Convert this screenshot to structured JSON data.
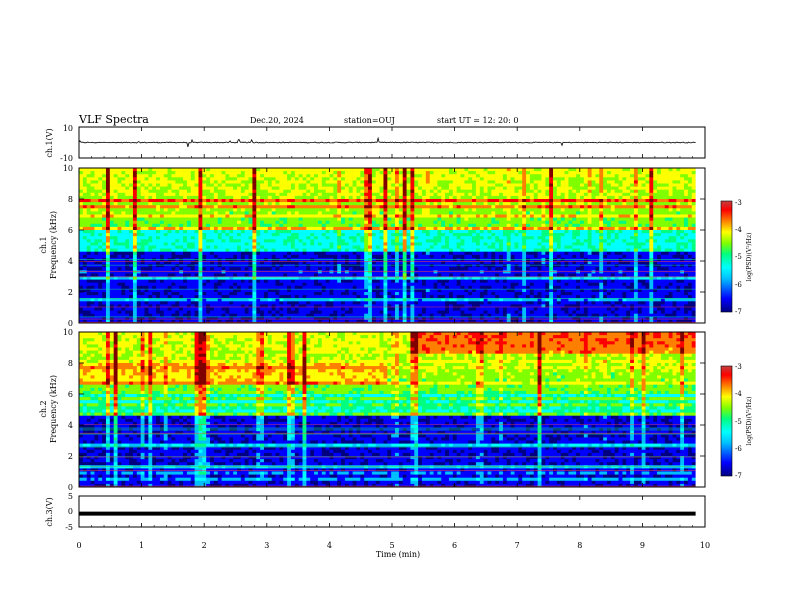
{
  "header": {
    "title": "VLF Spectra",
    "date": "Dec.20, 2024",
    "station": "station=OUJ",
    "start": "start UT =  12: 20: 0"
  },
  "chart_data": [
    {
      "type": "line",
      "panel": "ch1-waveform",
      "ylabel": "ch.1(V)",
      "ylim": [
        -10,
        10
      ],
      "yticks": [
        "10",
        "-10"
      ],
      "xlim": [
        0,
        10
      ],
      "baseline": 0,
      "color": "#000000"
    },
    {
      "type": "heatmap",
      "panel": "ch1-spectrogram",
      "ylabel": "ch.1\nFrequency (kHz)",
      "ylim": [
        0,
        10
      ],
      "yticks": [
        0,
        2,
        4,
        6,
        8,
        10
      ],
      "xlim": [
        0,
        10
      ],
      "colorbar": {
        "label": "log(PSD)(V²/Hz)",
        "range": [
          -7,
          -3
        ],
        "ticks": [
          "-3",
          "-4",
          "-5",
          "-6",
          "-7"
        ]
      }
    },
    {
      "type": "heatmap",
      "panel": "ch2-spectrogram",
      "ylabel": "ch.2\nFrequency (kHz)",
      "ylim": [
        0,
        10
      ],
      "yticks": [
        0,
        2,
        4,
        6,
        8,
        10
      ],
      "xlim": [
        0,
        10
      ],
      "colorbar": {
        "label": "log(PSD)(V²/Hz)",
        "range": [
          -7,
          -3
        ],
        "ticks": [
          "-3",
          "-4",
          "-5",
          "-6",
          "-7"
        ]
      }
    },
    {
      "type": "line",
      "panel": "ch3-waveform",
      "ylabel": "ch.3(V)",
      "ylim": [
        -5,
        5
      ],
      "yticks": [
        "5",
        "0",
        "-5"
      ],
      "xlim": [
        0,
        10
      ],
      "baseline": -0.7,
      "color": "#000000"
    }
  ],
  "xaxis": {
    "label": "Time (min)",
    "ticks": [
      "0",
      "1",
      "2",
      "3",
      "4",
      "5",
      "6",
      "7",
      "8",
      "9",
      "10"
    ],
    "data_end": 9.85
  },
  "colors": {
    "colormap": [
      "#000080",
      "#0000ff",
      "#00bfff",
      "#00ffff",
      "#00ff80",
      "#80ff00",
      "#ffff00",
      "#ff8000",
      "#ff0000",
      "#800000"
    ]
  }
}
